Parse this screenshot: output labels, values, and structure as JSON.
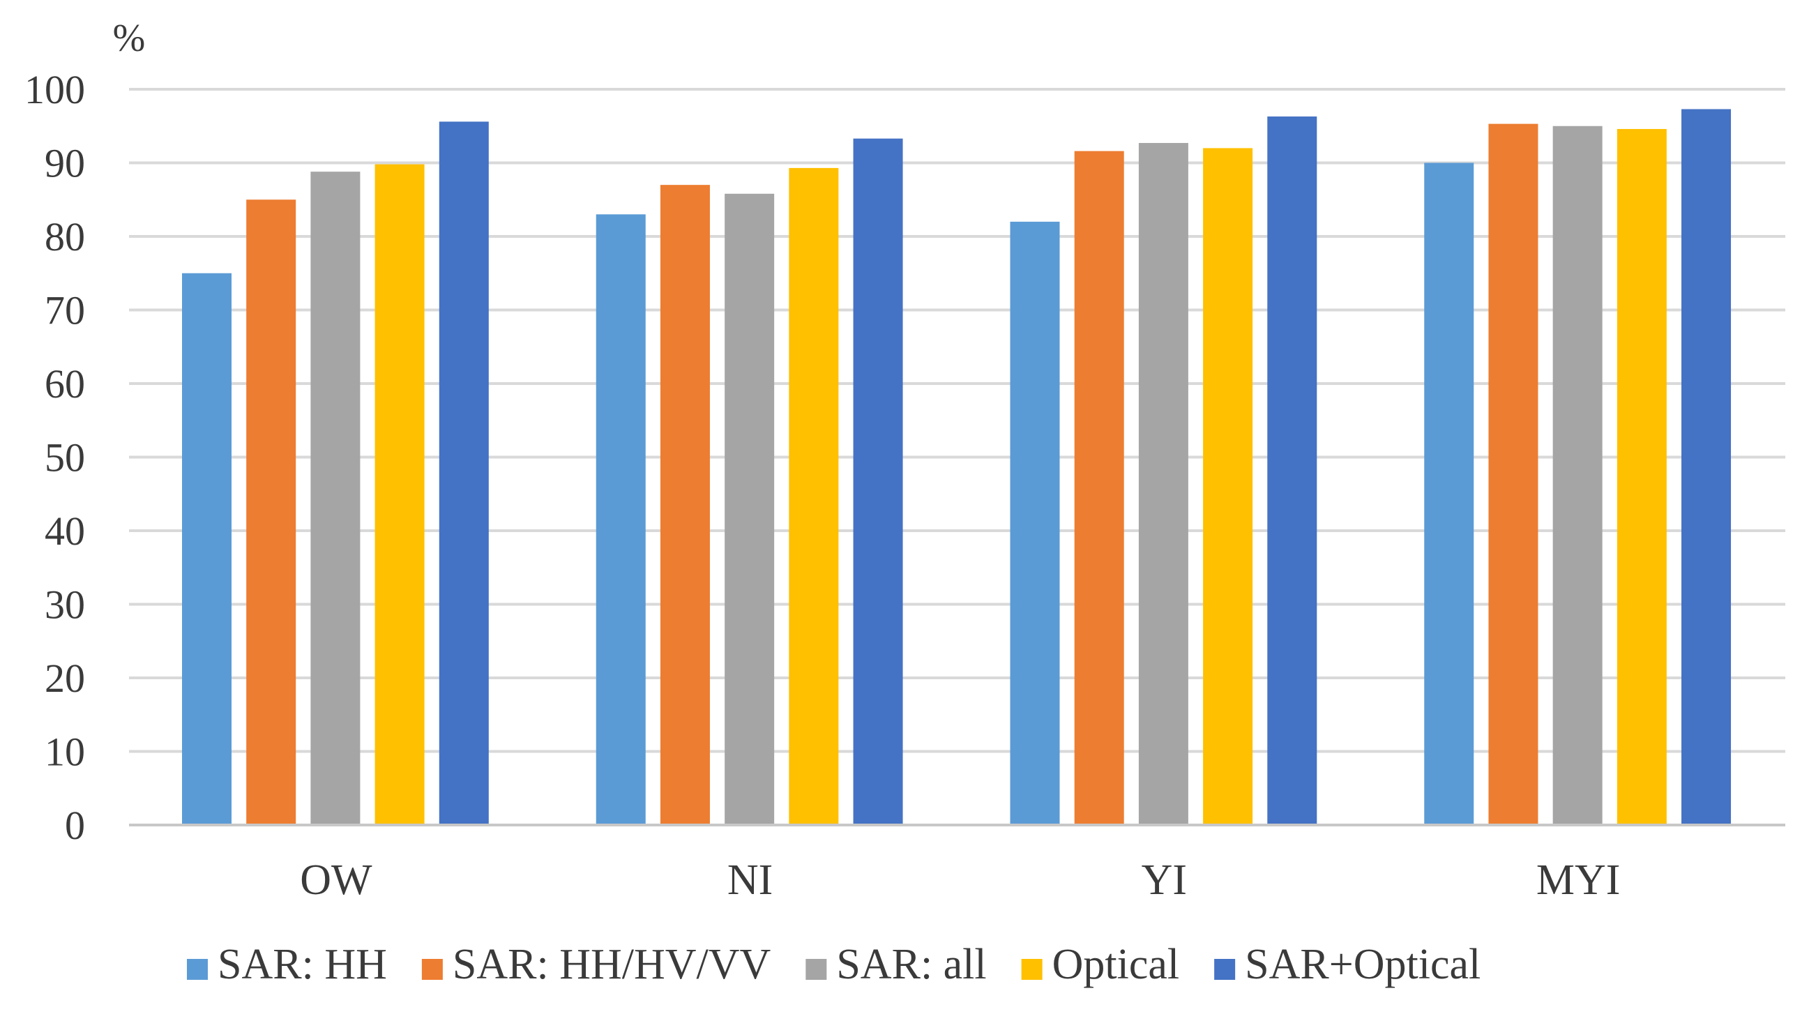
{
  "chart_data": {
    "type": "bar",
    "title": "",
    "xlabel": "",
    "ylabel": "%",
    "ylim": [
      0,
      100
    ],
    "yticks": [
      "0",
      "10",
      "20",
      "30",
      "40",
      "50",
      "60",
      "70",
      "80",
      "90",
      "100"
    ],
    "grid": true,
    "legend_position": "bottom",
    "categories": [
      "OW",
      "NI",
      "YI",
      "MYI"
    ],
    "series": [
      {
        "name": "SAR: HH",
        "color": "#5b9bd5",
        "values": [
          75,
          83,
          82,
          90
        ]
      },
      {
        "name": "SAR: HH/HV/VV",
        "color": "#ed7d31",
        "values": [
          85,
          87,
          91.6,
          95.3
        ]
      },
      {
        "name": "SAR: all",
        "color": "#a5a5a5",
        "values": [
          88.8,
          85.8,
          92.7,
          95
        ]
      },
      {
        "name": "Optical",
        "color": "#ffc000",
        "values": [
          89.8,
          89.3,
          92,
          94.6
        ]
      },
      {
        "name": "SAR+Optical",
        "color": "#4472c4",
        "values": [
          95.6,
          93.3,
          96.3,
          97.3
        ]
      }
    ]
  }
}
